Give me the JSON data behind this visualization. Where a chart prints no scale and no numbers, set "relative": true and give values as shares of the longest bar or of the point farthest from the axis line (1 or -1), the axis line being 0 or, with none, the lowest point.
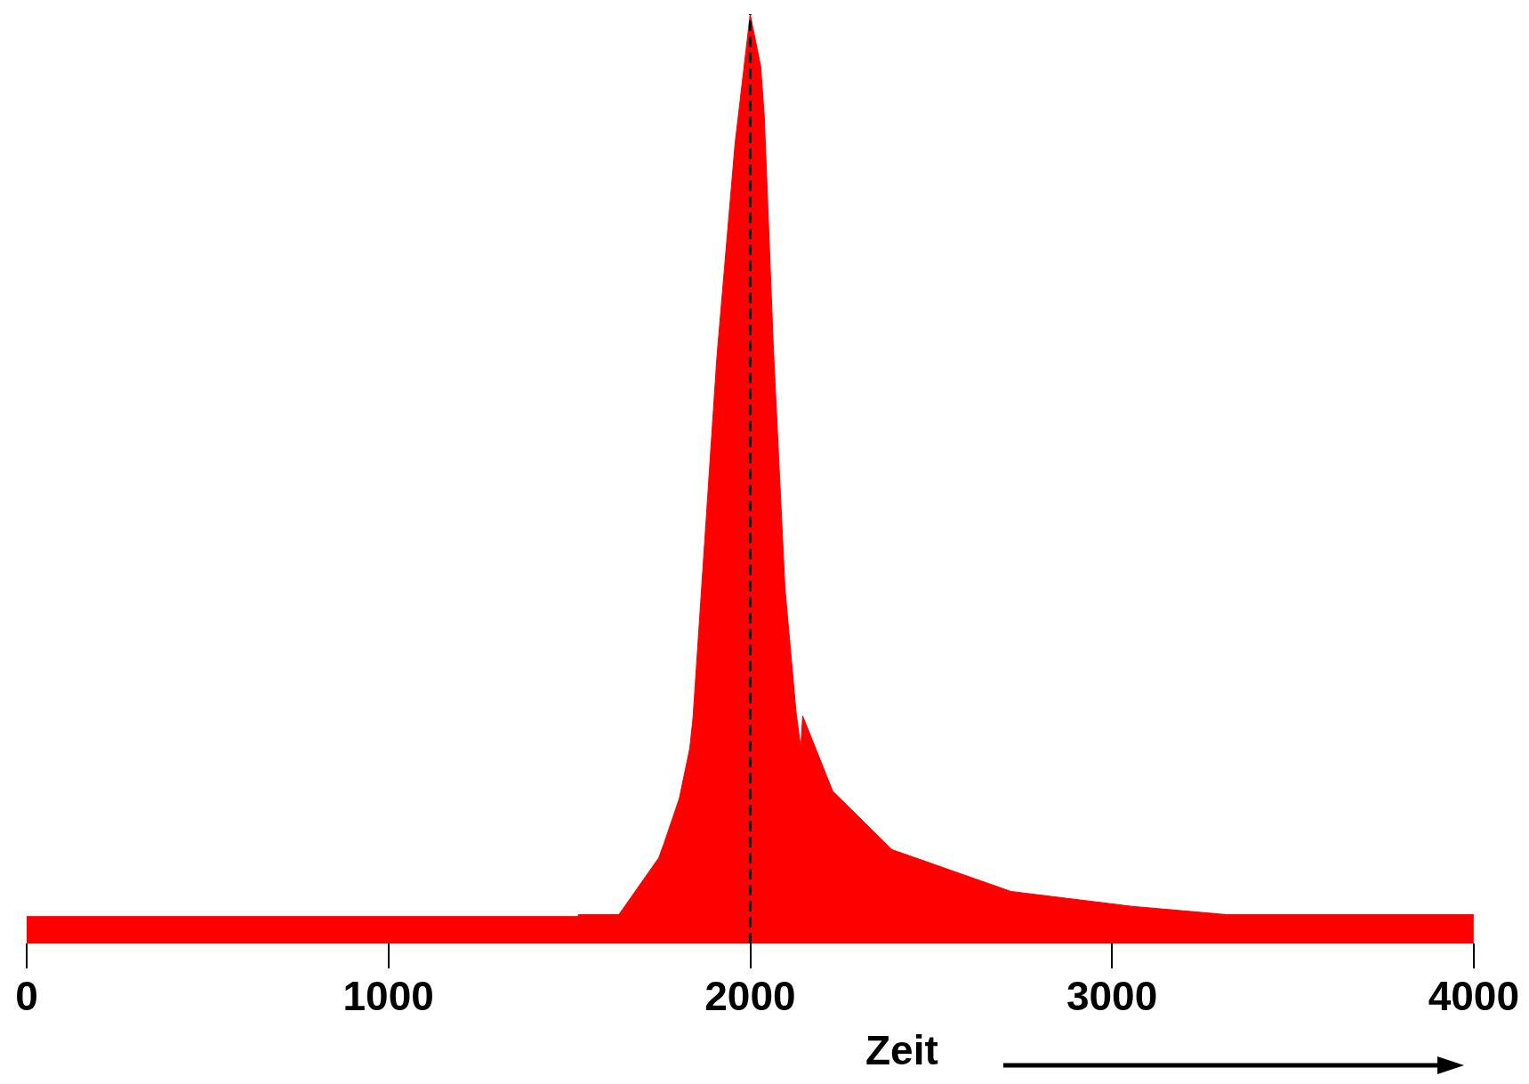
{
  "chart_data": {
    "type": "area",
    "xlabel": "Zeit",
    "relative": true,
    "color": "#ff0000",
    "x": [
      0,
      1524,
      1525,
      1637,
      1747,
      1762,
      1804,
      1833,
      1842,
      1908,
      1958,
      2000,
      2029,
      2039,
      2064,
      2096,
      2127,
      2140,
      2145,
      2228,
      2392,
      2721,
      3055,
      3319,
      4000
    ],
    "values": [
      0.029,
      0.029,
      0.031,
      0.031,
      0.092,
      0.108,
      0.156,
      0.21,
      0.243,
      0.631,
      0.86,
      1.0,
      0.944,
      0.89,
      0.642,
      0.383,
      0.248,
      0.21,
      0.245,
      0.164,
      0.101,
      0.056,
      0.04,
      0.031,
      0.031
    ],
    "xlim": [
      0,
      4000
    ],
    "xticks": [
      0,
      1000,
      2000,
      3000,
      4000
    ],
    "ref_lines": [
      {
        "axis": "x",
        "value": 2000,
        "color": "#000000",
        "line_style": "dashed"
      }
    ],
    "grid": false
  }
}
